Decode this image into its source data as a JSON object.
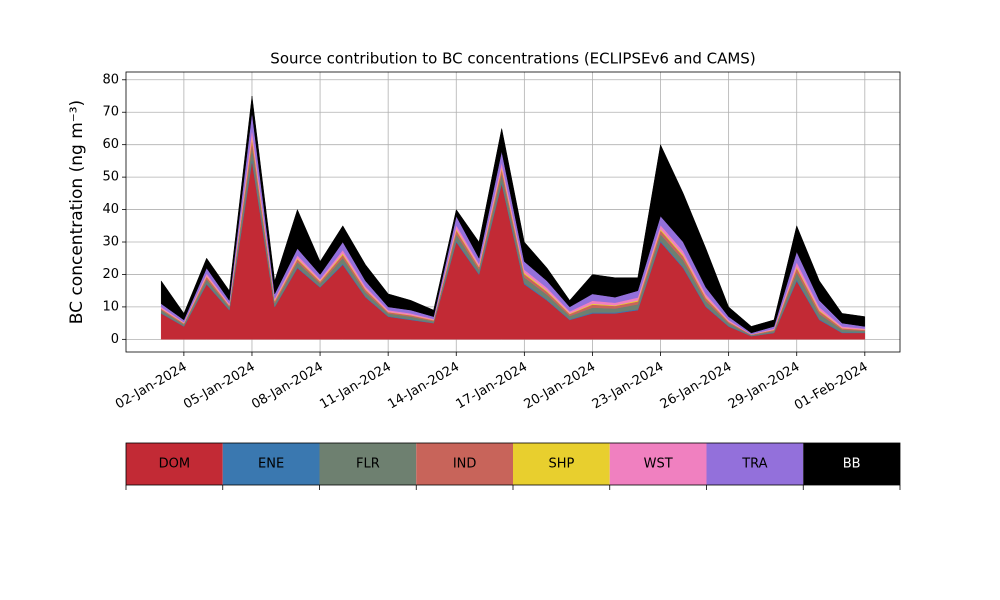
{
  "chart_data": {
    "type": "stacked_area",
    "title": "Source contribution to BC concentrations (ECLIPSEv6 and CAMS)",
    "y_label": "BC concentration (ng m⁻³)",
    "x": [
      "2024-01-01",
      "2024-01-02",
      "2024-01-03",
      "2024-01-04",
      "2024-01-05",
      "2024-01-06",
      "2024-01-07",
      "2024-01-08",
      "2024-01-09",
      "2024-01-10",
      "2024-01-11",
      "2024-01-12",
      "2024-01-13",
      "2024-01-14",
      "2024-01-15",
      "2024-01-16",
      "2024-01-17",
      "2024-01-18",
      "2024-01-19",
      "2024-01-20",
      "2024-01-21",
      "2024-01-22",
      "2024-01-23",
      "2024-01-24",
      "2024-01-25",
      "2024-01-26",
      "2024-01-27",
      "2024-01-28",
      "2024-01-29",
      "2024-01-30",
      "2024-01-31",
      "2024-02-01"
    ],
    "xticks": [
      {
        "value": "2024-01-02",
        "label": "02-Jan-2024"
      },
      {
        "value": "2024-01-05",
        "label": "05-Jan-2024"
      },
      {
        "value": "2024-01-08",
        "label": "08-Jan-2024"
      },
      {
        "value": "2024-01-11",
        "label": "11-Jan-2024"
      },
      {
        "value": "2024-01-14",
        "label": "14-Jan-2024"
      },
      {
        "value": "2024-01-17",
        "label": "17-Jan-2024"
      },
      {
        "value": "2024-01-20",
        "label": "20-Jan-2024"
      },
      {
        "value": "2024-01-23",
        "label": "23-Jan-2024"
      },
      {
        "value": "2024-01-26",
        "label": "26-Jan-2024"
      },
      {
        "value": "2024-01-29",
        "label": "29-Jan-2024"
      },
      {
        "value": "2024-02-01",
        "label": "01-Feb-2024"
      }
    ],
    "ylim": [
      -3.9,
      82.4
    ],
    "yticks": [
      0,
      10,
      20,
      30,
      40,
      50,
      60,
      70,
      80
    ],
    "grid": true,
    "series": [
      {
        "name": "DOM",
        "color": "#c22a35",
        "values": [
          8,
          4,
          17,
          9,
          55,
          10,
          22,
          16,
          23,
          13,
          7,
          6,
          5,
          30,
          20,
          48,
          17,
          12,
          6,
          8,
          8,
          9,
          30,
          22,
          10,
          4,
          1,
          2,
          18,
          6,
          2,
          2
        ]
      },
      {
        "name": "ENE",
        "color": "#3a78b0",
        "values": [
          0.2,
          0.1,
          0.3,
          0.2,
          0.8,
          0.2,
          0.3,
          0.2,
          0.4,
          0.3,
          0.2,
          0.2,
          0.1,
          0.4,
          0.3,
          0.5,
          0.4,
          0.3,
          0.2,
          0.3,
          0.3,
          0.3,
          0.4,
          0.4,
          0.3,
          0.2,
          0.1,
          0.1,
          0.5,
          0.3,
          0.2,
          0.1
        ]
      },
      {
        "name": "FLR",
        "color": "#6e8070",
        "values": [
          0.8,
          0.5,
          1.2,
          0.8,
          3.7,
          1.0,
          1.5,
          1.0,
          1.7,
          1.2,
          0.8,
          0.8,
          0.5,
          2.0,
          1.2,
          2.5,
          1.7,
          1.5,
          1.0,
          1.5,
          1.2,
          1.5,
          2.0,
          2.0,
          1.5,
          0.8,
          0.2,
          0.5,
          2.2,
          1.5,
          0.8,
          0.5
        ]
      },
      {
        "name": "IND",
        "color": "#c8645a",
        "values": [
          0.4,
          0.3,
          0.8,
          0.4,
          2.2,
          0.6,
          0.9,
          0.6,
          1.0,
          0.8,
          0.4,
          0.4,
          0.3,
          1.2,
          0.8,
          1.5,
          1.0,
          0.9,
          0.6,
          0.9,
          0.8,
          0.9,
          1.2,
          1.2,
          0.9,
          0.4,
          0.2,
          0.3,
          1.3,
          0.9,
          0.4,
          0.3
        ]
      },
      {
        "name": "SHP",
        "color": "#e8cf2e",
        "values": [
          0.1,
          0.1,
          0.2,
          0.1,
          0.8,
          0.2,
          0.3,
          0.2,
          0.4,
          0.2,
          0.1,
          0.1,
          0.1,
          0.4,
          0.2,
          0.5,
          0.4,
          0.3,
          0.2,
          0.3,
          0.2,
          0.3,
          0.4,
          0.4,
          0.3,
          0.1,
          0.0,
          0.1,
          0.4,
          0.3,
          0.1,
          0.1
        ]
      },
      {
        "name": "WST",
        "color": "#f080c0",
        "values": [
          0.5,
          0.3,
          0.8,
          0.5,
          2.2,
          0.6,
          0.9,
          0.6,
          1.0,
          0.8,
          0.5,
          0.5,
          0.3,
          1.2,
          0.8,
          1.5,
          1.0,
          0.9,
          0.6,
          0.9,
          0.8,
          0.9,
          1.2,
          1.2,
          0.9,
          0.5,
          0.1,
          0.3,
          1.4,
          0.9,
          0.5,
          0.3
        ]
      },
      {
        "name": "TRA",
        "color": "#9370db",
        "values": [
          1.0,
          0.7,
          1.7,
          1.0,
          5.3,
          1.4,
          2.1,
          1.4,
          2.5,
          1.7,
          1.0,
          1.0,
          0.7,
          2.8,
          1.7,
          3.5,
          2.5,
          2.1,
          1.4,
          2.1,
          1.7,
          2.1,
          2.8,
          2.8,
          2.1,
          1.0,
          0.4,
          0.7,
          3.2,
          2.1,
          1.0,
          0.7
        ]
      },
      {
        "name": "BB",
        "color": "#000000",
        "values": [
          7,
          2,
          3,
          3,
          5,
          4,
          12,
          4,
          5,
          5,
          4,
          3,
          2,
          2,
          5,
          7,
          6,
          4,
          2,
          6,
          6,
          4,
          22,
          15,
          12,
          3,
          2,
          2,
          8,
          6,
          3,
          3
        ]
      }
    ]
  }
}
